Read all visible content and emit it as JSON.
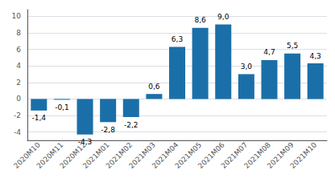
{
  "chart_data": {
    "type": "bar",
    "categories": [
      "2020M10",
      "2020M11",
      "2020M12",
      "2021M01",
      "2021M02",
      "2021M03",
      "2021M04",
      "2021M05",
      "2021M06",
      "2021M07",
      "2021M08",
      "2021M09",
      "2021M10"
    ],
    "values": [
      -1.4,
      -0.1,
      -4.3,
      -2.8,
      -2.2,
      0.6,
      6.3,
      8.6,
      9.0,
      3.0,
      4.7,
      5.5,
      4.3
    ],
    "value_labels": [
      "-1,4",
      "-0,1",
      "-4,3",
      "-2,8",
      "-2,2",
      "0,6",
      "6,3",
      "8,6",
      "9,0",
      "3,0",
      "4,7",
      "5,5",
      "4,3"
    ],
    "color": "#1B6FA8",
    "ylim": [
      -5.0,
      10.8
    ],
    "yticks": [
      -4,
      -2,
      0,
      2,
      4,
      6,
      8,
      10
    ],
    "grid": true,
    "data_labels": true
  }
}
